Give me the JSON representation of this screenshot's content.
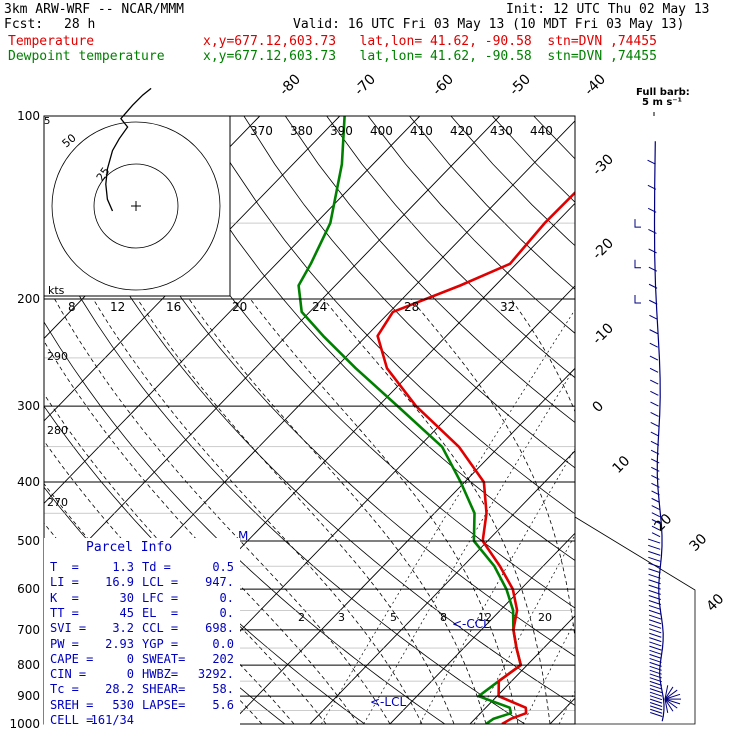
{
  "header": {
    "model": "3km ARW-WRF -- NCAR/MMM",
    "init": "Init: 12 UTC Thu 02 May 13",
    "fcst_label": "Fcst:",
    "fcst_value": "28 h",
    "valid": "Valid: 16 UTC Fri 03 May 13 (10 MDT Fri 03 May 13)",
    "temp_label": "Temperature",
    "temp_info": "x,y=677.12,603.73   lat,lon= 41.62, -90.58  stn=DVN ,74455",
    "dew_label": "Dewpoint temperature",
    "dew_info": "x,y=677.12,603.73   lat,lon= 41.62, -90.58  stn=DVN ,74455"
  },
  "colors": {
    "temperature": "#e00000",
    "dewpoint": "#008000",
    "wind": "#000080",
    "parcel_info": "#0000c0"
  },
  "full_barb": {
    "line1": "Full barb:",
    "line2": "5 m s⁻¹"
  },
  "hodograph": {
    "units": "kts",
    "ring_labels": [
      "25",
      "50"
    ],
    "trace": [
      [
        -14,
        -3
      ],
      [
        -17,
        4
      ],
      [
        -18,
        13
      ],
      [
        -17,
        22
      ],
      [
        -14,
        33
      ],
      [
        -10,
        40
      ],
      [
        -5,
        47
      ],
      [
        -9,
        52
      ],
      [
        -2,
        60
      ],
      [
        4,
        66
      ],
      [
        9,
        70
      ]
    ]
  },
  "parcel_info": {
    "title": "Parcel Info",
    "rows": [
      [
        "T  =",
        "1.3",
        "Td =",
        "0.5"
      ],
      [
        "LI =",
        "16.9",
        "LCL =",
        "947."
      ],
      [
        "K  =",
        "30",
        "LFC =",
        "0."
      ],
      [
        "TT =",
        "45",
        "EL  =",
        "0."
      ],
      [
        "SVI =",
        "3.2",
        "CCL =",
        "698."
      ],
      [
        "PW =",
        "2.93",
        "YGP =",
        "0.0"
      ],
      [
        "CAPE =",
        "0",
        "SWEAT=",
        "202"
      ],
      [
        "CIN =",
        "0",
        "HWBZ=",
        "3292."
      ],
      [
        "Tc =",
        "28.2",
        "SHEAR=",
        "58."
      ],
      [
        "SREH =",
        "530",
        "LAPSE=",
        "5.6"
      ],
      [
        "CELL =",
        "161/34",
        "",
        ""
      ]
    ]
  },
  "annotations": {
    "ccl": "<-CCL",
    "lcl": "<-LCL",
    "m_marker": "M"
  },
  "chart_data": {
    "type": "line",
    "chart_kind": "skew-T log-p",
    "pressure_levels": [
      100,
      200,
      300,
      400,
      500,
      600,
      700,
      800,
      900,
      1000
    ],
    "isotherm_labels": [
      -80,
      -70,
      -60,
      -50,
      -40,
      -30,
      -20,
      -10,
      0,
      10,
      20,
      30,
      40
    ],
    "theta_e_labels": [
      370,
      380,
      390,
      400,
      410,
      420,
      430,
      440
    ],
    "theta_left_labels": [
      290,
      280,
      270
    ],
    "mixing_ratio_labels_upper": [
      8,
      12,
      16,
      20,
      24,
      28,
      32
    ],
    "mixing_ratio_labels_lower": [
      2,
      3,
      5,
      8,
      12,
      20
    ],
    "series": [
      {
        "name": "Temperature",
        "points": [
          [
            100,
            -40.9
          ],
          [
            120,
            -41.2
          ],
          [
            150,
            -41.4
          ],
          [
            175,
            -40.8
          ],
          [
            190,
            -44.4
          ],
          [
            210,
            -49.6
          ],
          [
            230,
            -48.6
          ],
          [
            260,
            -43.5
          ],
          [
            300,
            -35.3
          ],
          [
            350,
            -25.0
          ],
          [
            400,
            -17.6
          ],
          [
            450,
            -13.5
          ],
          [
            500,
            -10.6
          ],
          [
            550,
            -5.4
          ],
          [
            600,
            -1.0
          ],
          [
            650,
            2.1
          ],
          [
            700,
            4.0
          ],
          [
            750,
            6.6
          ],
          [
            800,
            9.2
          ],
          [
            850,
            8.4
          ],
          [
            900,
            10.2
          ],
          [
            940,
            15.0
          ],
          [
            960,
            15.7
          ],
          [
            980,
            14.5
          ],
          [
            1000,
            14.0
          ]
        ]
      },
      {
        "name": "Dewpoint temperature",
        "points": [
          [
            100,
            -79.4
          ],
          [
            120,
            -73.9
          ],
          [
            150,
            -68.2
          ],
          [
            175,
            -65.7
          ],
          [
            190,
            -64.6
          ],
          [
            210,
            -61.0
          ],
          [
            230,
            -55.4
          ],
          [
            260,
            -47.4
          ],
          [
            300,
            -37.6
          ],
          [
            350,
            -27.1
          ],
          [
            400,
            -20.5
          ],
          [
            450,
            -15.0
          ],
          [
            500,
            -11.7
          ],
          [
            550,
            -6.1
          ],
          [
            600,
            -1.8
          ],
          [
            650,
            1.6
          ],
          [
            700,
            4.0
          ],
          [
            750,
            6.6
          ],
          [
            800,
            9.2
          ],
          [
            850,
            8.4
          ],
          [
            900,
            7.7
          ],
          [
            940,
            13.0
          ],
          [
            960,
            13.8
          ],
          [
            980,
            12.3
          ],
          [
            1000,
            12.0
          ]
        ]
      }
    ],
    "wind_profile": [
      [
        110,
        25
      ],
      [
        150,
        30
      ],
      [
        200,
        25
      ],
      [
        300,
        20
      ],
      [
        400,
        15
      ],
      [
        500,
        20
      ],
      [
        600,
        15
      ],
      [
        700,
        15
      ],
      [
        800,
        10
      ],
      [
        900,
        15
      ],
      [
        950,
        10
      ]
    ]
  }
}
